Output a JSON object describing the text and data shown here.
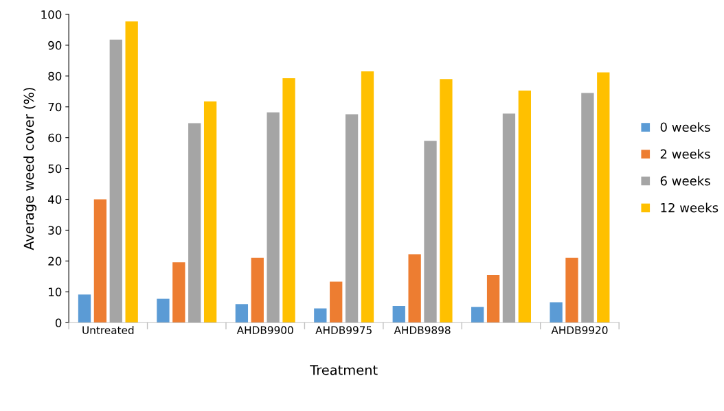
{
  "chart_data": {
    "type": "bar",
    "xlabel": "Treatment",
    "ylabel": "Average weed cover (%)",
    "categories": [
      "Untreated",
      null,
      "AHDB9900",
      "AHDB9975",
      "AHDB9898",
      null,
      "AHDB9920"
    ],
    "series": [
      {
        "name": "0 weeks",
        "color": "#5b9bd5",
        "values": [
          9.1,
          7.7,
          6.0,
          4.6,
          5.4,
          5.1,
          6.6
        ]
      },
      {
        "name": "2 weeks",
        "color": "#ed7d31",
        "values": [
          40,
          19.6,
          21,
          13.3,
          22.2,
          15.4,
          21
        ]
      },
      {
        "name": "6 weeks",
        "color": "#a5a5a5",
        "values": [
          91.8,
          64.7,
          68.2,
          67.6,
          59,
          67.8,
          74.5
        ]
      },
      {
        "name": "12 weeks",
        "color": "#ffc000",
        "values": [
          97.7,
          71.8,
          79.3,
          81.5,
          79,
          75.3,
          81.2
        ]
      }
    ],
    "ylim": [
      0,
      100
    ],
    "yticks": [
      0,
      10,
      20,
      30,
      40,
      50,
      60,
      70,
      80,
      90,
      100
    ],
    "grid": false,
    "legend": "right"
  }
}
